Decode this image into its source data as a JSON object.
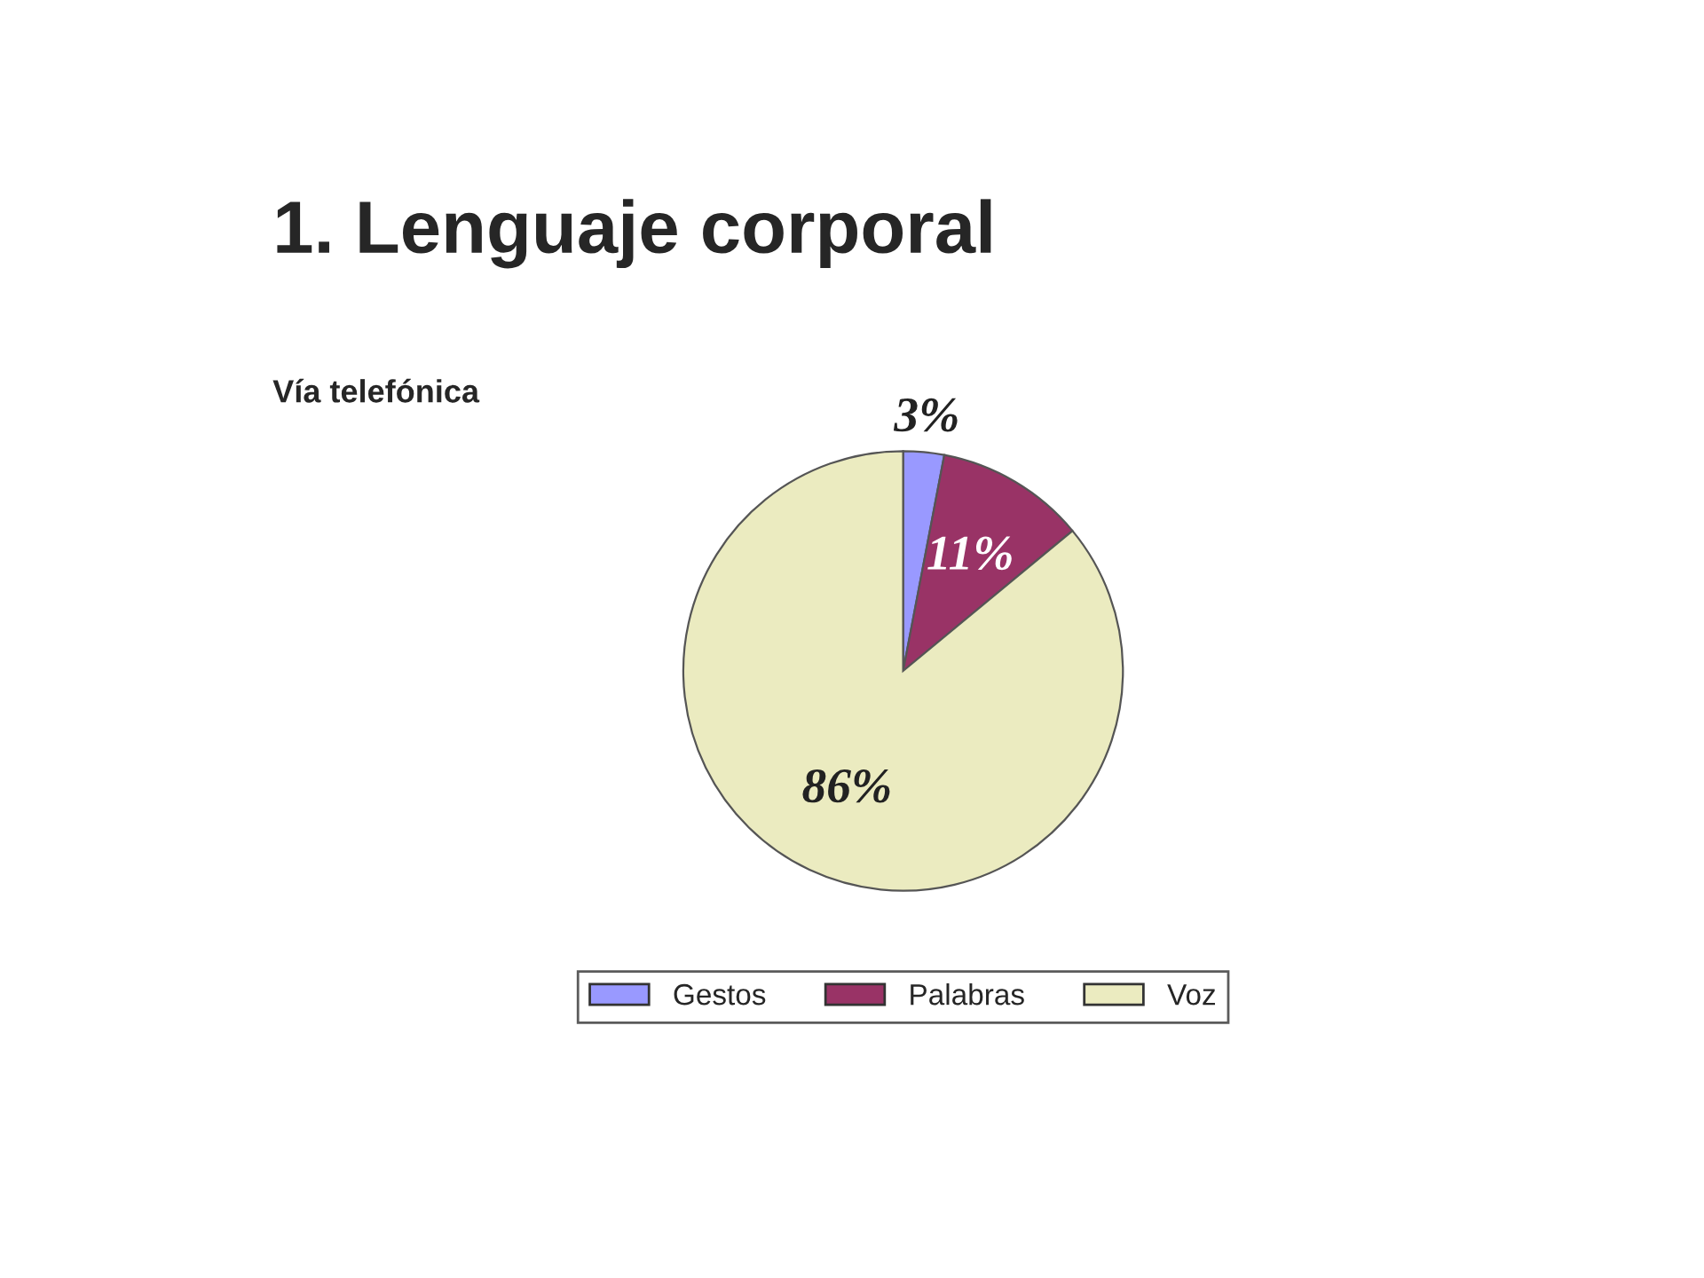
{
  "chart_data": {
    "type": "pie",
    "title": "1. Lenguaje corporal",
    "subtitle": "Vía telefónica",
    "categories": [
      "Gestos",
      "Palabras",
      "Voz"
    ],
    "values": [
      3,
      11,
      86
    ],
    "value_labels": [
      "3%",
      "11%",
      "86%"
    ],
    "colors": [
      "#9999ff",
      "#993366",
      "#ebebc0"
    ],
    "legend": "bottom"
  }
}
